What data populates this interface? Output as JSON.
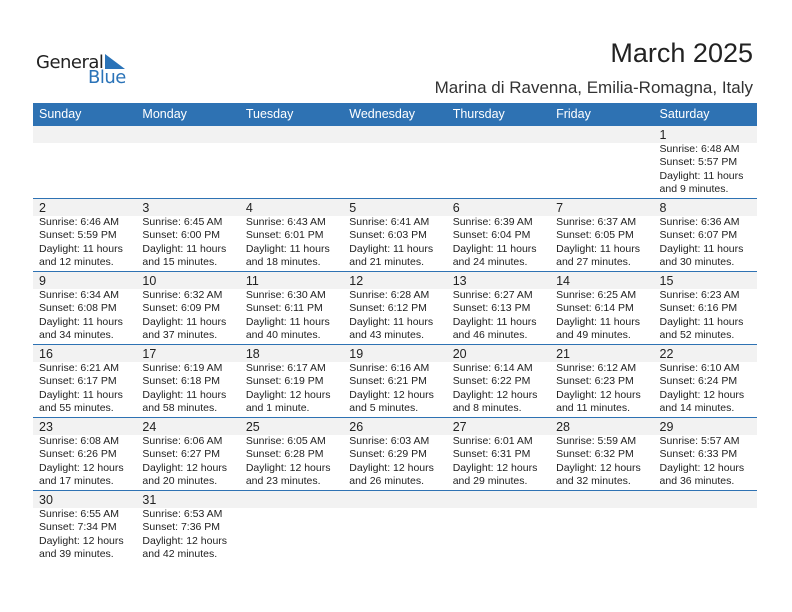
{
  "logo": {
    "text1": "General",
    "text2": "Blue",
    "color": "#2a73b8"
  },
  "title": "March 2025",
  "location": "Marina di Ravenna, Emilia-Romagna, Italy",
  "header_color": "#2e72b3",
  "weekdays": [
    "Sunday",
    "Monday",
    "Tuesday",
    "Wednesday",
    "Thursday",
    "Friday",
    "Saturday"
  ],
  "weeks": [
    [
      null,
      null,
      null,
      null,
      null,
      null,
      {
        "day": "1",
        "sunrise": "Sunrise: 6:48 AM",
        "sunset": "Sunset: 5:57 PM",
        "daylight1": "Daylight: 11 hours",
        "daylight2": "and 9 minutes."
      }
    ],
    [
      {
        "day": "2",
        "sunrise": "Sunrise: 6:46 AM",
        "sunset": "Sunset: 5:59 PM",
        "daylight1": "Daylight: 11 hours",
        "daylight2": "and 12 minutes."
      },
      {
        "day": "3",
        "sunrise": "Sunrise: 6:45 AM",
        "sunset": "Sunset: 6:00 PM",
        "daylight1": "Daylight: 11 hours",
        "daylight2": "and 15 minutes."
      },
      {
        "day": "4",
        "sunrise": "Sunrise: 6:43 AM",
        "sunset": "Sunset: 6:01 PM",
        "daylight1": "Daylight: 11 hours",
        "daylight2": "and 18 minutes."
      },
      {
        "day": "5",
        "sunrise": "Sunrise: 6:41 AM",
        "sunset": "Sunset: 6:03 PM",
        "daylight1": "Daylight: 11 hours",
        "daylight2": "and 21 minutes."
      },
      {
        "day": "6",
        "sunrise": "Sunrise: 6:39 AM",
        "sunset": "Sunset: 6:04 PM",
        "daylight1": "Daylight: 11 hours",
        "daylight2": "and 24 minutes."
      },
      {
        "day": "7",
        "sunrise": "Sunrise: 6:37 AM",
        "sunset": "Sunset: 6:05 PM",
        "daylight1": "Daylight: 11 hours",
        "daylight2": "and 27 minutes."
      },
      {
        "day": "8",
        "sunrise": "Sunrise: 6:36 AM",
        "sunset": "Sunset: 6:07 PM",
        "daylight1": "Daylight: 11 hours",
        "daylight2": "and 30 minutes."
      }
    ],
    [
      {
        "day": "9",
        "sunrise": "Sunrise: 6:34 AM",
        "sunset": "Sunset: 6:08 PM",
        "daylight1": "Daylight: 11 hours",
        "daylight2": "and 34 minutes."
      },
      {
        "day": "10",
        "sunrise": "Sunrise: 6:32 AM",
        "sunset": "Sunset: 6:09 PM",
        "daylight1": "Daylight: 11 hours",
        "daylight2": "and 37 minutes."
      },
      {
        "day": "11",
        "sunrise": "Sunrise: 6:30 AM",
        "sunset": "Sunset: 6:11 PM",
        "daylight1": "Daylight: 11 hours",
        "daylight2": "and 40 minutes."
      },
      {
        "day": "12",
        "sunrise": "Sunrise: 6:28 AM",
        "sunset": "Sunset: 6:12 PM",
        "daylight1": "Daylight: 11 hours",
        "daylight2": "and 43 minutes."
      },
      {
        "day": "13",
        "sunrise": "Sunrise: 6:27 AM",
        "sunset": "Sunset: 6:13 PM",
        "daylight1": "Daylight: 11 hours",
        "daylight2": "and 46 minutes."
      },
      {
        "day": "14",
        "sunrise": "Sunrise: 6:25 AM",
        "sunset": "Sunset: 6:14 PM",
        "daylight1": "Daylight: 11 hours",
        "daylight2": "and 49 minutes."
      },
      {
        "day": "15",
        "sunrise": "Sunrise: 6:23 AM",
        "sunset": "Sunset: 6:16 PM",
        "daylight1": "Daylight: 11 hours",
        "daylight2": "and 52 minutes."
      }
    ],
    [
      {
        "day": "16",
        "sunrise": "Sunrise: 6:21 AM",
        "sunset": "Sunset: 6:17 PM",
        "daylight1": "Daylight: 11 hours",
        "daylight2": "and 55 minutes."
      },
      {
        "day": "17",
        "sunrise": "Sunrise: 6:19 AM",
        "sunset": "Sunset: 6:18 PM",
        "daylight1": "Daylight: 11 hours",
        "daylight2": "and 58 minutes."
      },
      {
        "day": "18",
        "sunrise": "Sunrise: 6:17 AM",
        "sunset": "Sunset: 6:19 PM",
        "daylight1": "Daylight: 12 hours",
        "daylight2": "and 1 minute."
      },
      {
        "day": "19",
        "sunrise": "Sunrise: 6:16 AM",
        "sunset": "Sunset: 6:21 PM",
        "daylight1": "Daylight: 12 hours",
        "daylight2": "and 5 minutes."
      },
      {
        "day": "20",
        "sunrise": "Sunrise: 6:14 AM",
        "sunset": "Sunset: 6:22 PM",
        "daylight1": "Daylight: 12 hours",
        "daylight2": "and 8 minutes."
      },
      {
        "day": "21",
        "sunrise": "Sunrise: 6:12 AM",
        "sunset": "Sunset: 6:23 PM",
        "daylight1": "Daylight: 12 hours",
        "daylight2": "and 11 minutes."
      },
      {
        "day": "22",
        "sunrise": "Sunrise: 6:10 AM",
        "sunset": "Sunset: 6:24 PM",
        "daylight1": "Daylight: 12 hours",
        "daylight2": "and 14 minutes."
      }
    ],
    [
      {
        "day": "23",
        "sunrise": "Sunrise: 6:08 AM",
        "sunset": "Sunset: 6:26 PM",
        "daylight1": "Daylight: 12 hours",
        "daylight2": "and 17 minutes."
      },
      {
        "day": "24",
        "sunrise": "Sunrise: 6:06 AM",
        "sunset": "Sunset: 6:27 PM",
        "daylight1": "Daylight: 12 hours",
        "daylight2": "and 20 minutes."
      },
      {
        "day": "25",
        "sunrise": "Sunrise: 6:05 AM",
        "sunset": "Sunset: 6:28 PM",
        "daylight1": "Daylight: 12 hours",
        "daylight2": "and 23 minutes."
      },
      {
        "day": "26",
        "sunrise": "Sunrise: 6:03 AM",
        "sunset": "Sunset: 6:29 PM",
        "daylight1": "Daylight: 12 hours",
        "daylight2": "and 26 minutes."
      },
      {
        "day": "27",
        "sunrise": "Sunrise: 6:01 AM",
        "sunset": "Sunset: 6:31 PM",
        "daylight1": "Daylight: 12 hours",
        "daylight2": "and 29 minutes."
      },
      {
        "day": "28",
        "sunrise": "Sunrise: 5:59 AM",
        "sunset": "Sunset: 6:32 PM",
        "daylight1": "Daylight: 12 hours",
        "daylight2": "and 32 minutes."
      },
      {
        "day": "29",
        "sunrise": "Sunrise: 5:57 AM",
        "sunset": "Sunset: 6:33 PM",
        "daylight1": "Daylight: 12 hours",
        "daylight2": "and 36 minutes."
      }
    ],
    [
      {
        "day": "30",
        "sunrise": "Sunrise: 6:55 AM",
        "sunset": "Sunset: 7:34 PM",
        "daylight1": "Daylight: 12 hours",
        "daylight2": "and 39 minutes."
      },
      {
        "day": "31",
        "sunrise": "Sunrise: 6:53 AM",
        "sunset": "Sunset: 7:36 PM",
        "daylight1": "Daylight: 12 hours",
        "daylight2": "and 42 minutes."
      },
      null,
      null,
      null,
      null,
      null
    ]
  ]
}
